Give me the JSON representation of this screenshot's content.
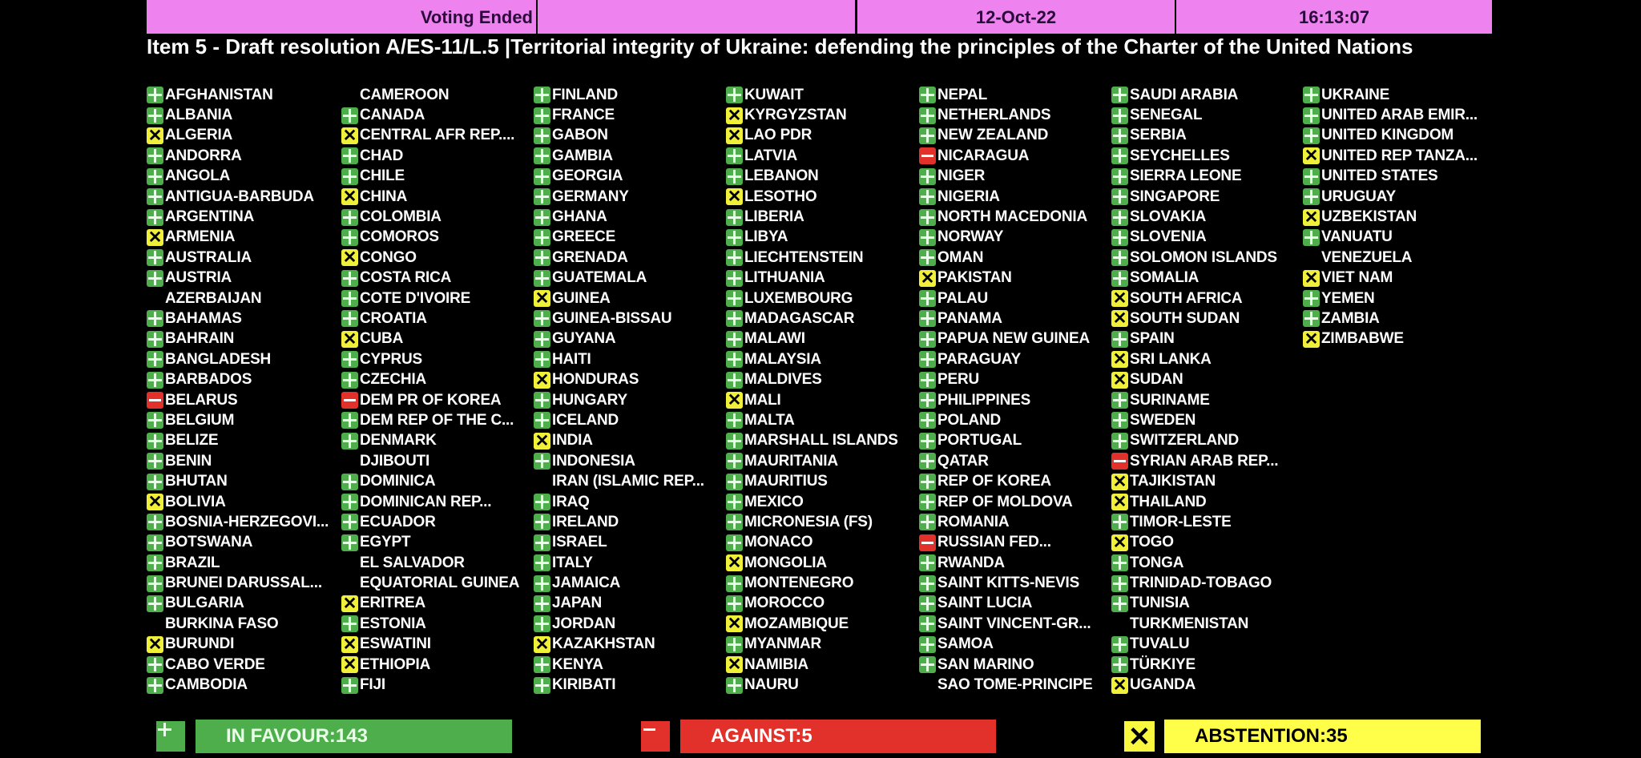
{
  "header": {
    "status": "Voting Ended",
    "segment2": "",
    "date": "12-Oct-22",
    "time": "16:13:07"
  },
  "title": "Item 5 - Draft resolution A/ES-11/L.5 |Territorial integrity of Ukraine: defending the principles of the Charter of the United Nations",
  "colors": {
    "yes": "#4fae4c",
    "no": "#e2302a",
    "abstain": "#f0f03a",
    "header": "#ee82ee"
  },
  "icons": {
    "yes": "plus-icon",
    "no": "minus-icon",
    "abstain": "x-icon"
  },
  "columns": [
    [
      {
        "name": "AFGHANISTAN",
        "vote": "yes"
      },
      {
        "name": "ALBANIA",
        "vote": "yes"
      },
      {
        "name": "ALGERIA",
        "vote": "abstain"
      },
      {
        "name": "ANDORRA",
        "vote": "yes"
      },
      {
        "name": "ANGOLA",
        "vote": "yes"
      },
      {
        "name": "ANTIGUA-BARBUDA",
        "vote": "yes"
      },
      {
        "name": "ARGENTINA",
        "vote": "yes"
      },
      {
        "name": "ARMENIA",
        "vote": "abstain"
      },
      {
        "name": "AUSTRALIA",
        "vote": "yes"
      },
      {
        "name": "AUSTRIA",
        "vote": "yes"
      },
      {
        "name": "AZERBAIJAN",
        "vote": ""
      },
      {
        "name": "BAHAMAS",
        "vote": "yes"
      },
      {
        "name": "BAHRAIN",
        "vote": "yes"
      },
      {
        "name": "BANGLADESH",
        "vote": "yes"
      },
      {
        "name": "BARBADOS",
        "vote": "yes"
      },
      {
        "name": "BELARUS",
        "vote": "no"
      },
      {
        "name": "BELGIUM",
        "vote": "yes"
      },
      {
        "name": "BELIZE",
        "vote": "yes"
      },
      {
        "name": "BENIN",
        "vote": "yes"
      },
      {
        "name": "BHUTAN",
        "vote": "yes"
      },
      {
        "name": "BOLIVIA",
        "vote": "abstain"
      },
      {
        "name": "BOSNIA-HERZEGOVI...",
        "vote": "yes"
      },
      {
        "name": "BOTSWANA",
        "vote": "yes"
      },
      {
        "name": "BRAZIL",
        "vote": "yes"
      },
      {
        "name": "BRUNEI DARUSSAL...",
        "vote": "yes"
      },
      {
        "name": "BULGARIA",
        "vote": "yes"
      },
      {
        "name": "BURKINA FASO",
        "vote": ""
      },
      {
        "name": "BURUNDI",
        "vote": "abstain"
      },
      {
        "name": "CABO VERDE",
        "vote": "yes"
      },
      {
        "name": "CAMBODIA",
        "vote": "yes"
      }
    ],
    [
      {
        "name": "CAMEROON",
        "vote": ""
      },
      {
        "name": "CANADA",
        "vote": "yes"
      },
      {
        "name": "CENTRAL AFR REP....",
        "vote": "abstain"
      },
      {
        "name": "CHAD",
        "vote": "yes"
      },
      {
        "name": "CHILE",
        "vote": "yes"
      },
      {
        "name": "CHINA",
        "vote": "abstain"
      },
      {
        "name": "COLOMBIA",
        "vote": "yes"
      },
      {
        "name": "COMOROS",
        "vote": "yes"
      },
      {
        "name": "CONGO",
        "vote": "abstain"
      },
      {
        "name": "COSTA RICA",
        "vote": "yes"
      },
      {
        "name": "COTE D'IVOIRE",
        "vote": "yes"
      },
      {
        "name": "CROATIA",
        "vote": "yes"
      },
      {
        "name": "CUBA",
        "vote": "abstain"
      },
      {
        "name": "CYPRUS",
        "vote": "yes"
      },
      {
        "name": "CZECHIA",
        "vote": "yes"
      },
      {
        "name": "DEM PR OF KOREA",
        "vote": "no"
      },
      {
        "name": "DEM REP OF THE C...",
        "vote": "yes"
      },
      {
        "name": "DENMARK",
        "vote": "yes"
      },
      {
        "name": "DJIBOUTI",
        "vote": ""
      },
      {
        "name": "DOMINICA",
        "vote": "yes"
      },
      {
        "name": "DOMINICAN REP...",
        "vote": "yes"
      },
      {
        "name": "ECUADOR",
        "vote": "yes"
      },
      {
        "name": "EGYPT",
        "vote": "yes"
      },
      {
        "name": "EL SALVADOR",
        "vote": ""
      },
      {
        "name": "EQUATORIAL GUINEA",
        "vote": ""
      },
      {
        "name": "ERITREA",
        "vote": "abstain"
      },
      {
        "name": "ESTONIA",
        "vote": "yes"
      },
      {
        "name": "ESWATINI",
        "vote": "abstain"
      },
      {
        "name": "ETHIOPIA",
        "vote": "abstain"
      },
      {
        "name": "FIJI",
        "vote": "yes"
      }
    ],
    [
      {
        "name": "FINLAND",
        "vote": "yes"
      },
      {
        "name": "FRANCE",
        "vote": "yes"
      },
      {
        "name": "GABON",
        "vote": "yes"
      },
      {
        "name": "GAMBIA",
        "vote": "yes"
      },
      {
        "name": "GEORGIA",
        "vote": "yes"
      },
      {
        "name": "GERMANY",
        "vote": "yes"
      },
      {
        "name": "GHANA",
        "vote": "yes"
      },
      {
        "name": "GREECE",
        "vote": "yes"
      },
      {
        "name": "GRENADA",
        "vote": "yes"
      },
      {
        "name": "GUATEMALA",
        "vote": "yes"
      },
      {
        "name": "GUINEA",
        "vote": "abstain"
      },
      {
        "name": "GUINEA-BISSAU",
        "vote": "yes"
      },
      {
        "name": "GUYANA",
        "vote": "yes"
      },
      {
        "name": "HAITI",
        "vote": "yes"
      },
      {
        "name": "HONDURAS",
        "vote": "abstain"
      },
      {
        "name": "HUNGARY",
        "vote": "yes"
      },
      {
        "name": "ICELAND",
        "vote": "yes"
      },
      {
        "name": "INDIA",
        "vote": "abstain"
      },
      {
        "name": "INDONESIA",
        "vote": "yes"
      },
      {
        "name": "IRAN (ISLAMIC REP...",
        "vote": ""
      },
      {
        "name": "IRAQ",
        "vote": "yes"
      },
      {
        "name": "IRELAND",
        "vote": "yes"
      },
      {
        "name": "ISRAEL",
        "vote": "yes"
      },
      {
        "name": "ITALY",
        "vote": "yes"
      },
      {
        "name": "JAMAICA",
        "vote": "yes"
      },
      {
        "name": "JAPAN",
        "vote": "yes"
      },
      {
        "name": "JORDAN",
        "vote": "yes"
      },
      {
        "name": "KAZAKHSTAN",
        "vote": "abstain"
      },
      {
        "name": "KENYA",
        "vote": "yes"
      },
      {
        "name": "KIRIBATI",
        "vote": "yes"
      }
    ],
    [
      {
        "name": "KUWAIT",
        "vote": "yes"
      },
      {
        "name": "KYRGYZSTAN",
        "vote": "abstain"
      },
      {
        "name": "LAO PDR",
        "vote": "abstain"
      },
      {
        "name": "LATVIA",
        "vote": "yes"
      },
      {
        "name": "LEBANON",
        "vote": "yes"
      },
      {
        "name": "LESOTHO",
        "vote": "abstain"
      },
      {
        "name": "LIBERIA",
        "vote": "yes"
      },
      {
        "name": "LIBYA",
        "vote": "yes"
      },
      {
        "name": "LIECHTENSTEIN",
        "vote": "yes"
      },
      {
        "name": "LITHUANIA",
        "vote": "yes"
      },
      {
        "name": "LUXEMBOURG",
        "vote": "yes"
      },
      {
        "name": "MADAGASCAR",
        "vote": "yes"
      },
      {
        "name": "MALAWI",
        "vote": "yes"
      },
      {
        "name": "MALAYSIA",
        "vote": "yes"
      },
      {
        "name": "MALDIVES",
        "vote": "yes"
      },
      {
        "name": "MALI",
        "vote": "abstain"
      },
      {
        "name": "MALTA",
        "vote": "yes"
      },
      {
        "name": "MARSHALL ISLANDS",
        "vote": "yes"
      },
      {
        "name": "MAURITANIA",
        "vote": "yes"
      },
      {
        "name": "MAURITIUS",
        "vote": "yes"
      },
      {
        "name": "MEXICO",
        "vote": "yes"
      },
      {
        "name": "MICRONESIA (FS)",
        "vote": "yes"
      },
      {
        "name": "MONACO",
        "vote": "yes"
      },
      {
        "name": "MONGOLIA",
        "vote": "abstain"
      },
      {
        "name": "MONTENEGRO",
        "vote": "yes"
      },
      {
        "name": "MOROCCO",
        "vote": "yes"
      },
      {
        "name": "MOZAMBIQUE",
        "vote": "abstain"
      },
      {
        "name": "MYANMAR",
        "vote": "yes"
      },
      {
        "name": "NAMIBIA",
        "vote": "abstain"
      },
      {
        "name": "NAURU",
        "vote": "yes"
      }
    ],
    [
      {
        "name": "NEPAL",
        "vote": "yes"
      },
      {
        "name": "NETHERLANDS",
        "vote": "yes"
      },
      {
        "name": "NEW ZEALAND",
        "vote": "yes"
      },
      {
        "name": "NICARAGUA",
        "vote": "no"
      },
      {
        "name": "NIGER",
        "vote": "yes"
      },
      {
        "name": "NIGERIA",
        "vote": "yes"
      },
      {
        "name": "NORTH MACEDONIA",
        "vote": "yes"
      },
      {
        "name": "NORWAY",
        "vote": "yes"
      },
      {
        "name": "OMAN",
        "vote": "yes"
      },
      {
        "name": "PAKISTAN",
        "vote": "abstain"
      },
      {
        "name": "PALAU",
        "vote": "yes"
      },
      {
        "name": "PANAMA",
        "vote": "yes"
      },
      {
        "name": "PAPUA NEW GUINEA",
        "vote": "yes"
      },
      {
        "name": "PARAGUAY",
        "vote": "yes"
      },
      {
        "name": "PERU",
        "vote": "yes"
      },
      {
        "name": "PHILIPPINES",
        "vote": "yes"
      },
      {
        "name": "POLAND",
        "vote": "yes"
      },
      {
        "name": "PORTUGAL",
        "vote": "yes"
      },
      {
        "name": "QATAR",
        "vote": "yes"
      },
      {
        "name": "REP OF KOREA",
        "vote": "yes"
      },
      {
        "name": "REP OF MOLDOVA",
        "vote": "yes"
      },
      {
        "name": "ROMANIA",
        "vote": "yes"
      },
      {
        "name": "RUSSIAN FED...",
        "vote": "no"
      },
      {
        "name": "RWANDA",
        "vote": "yes"
      },
      {
        "name": "SAINT KITTS-NEVIS",
        "vote": "yes"
      },
      {
        "name": "SAINT LUCIA",
        "vote": "yes"
      },
      {
        "name": "SAINT VINCENT-GR...",
        "vote": "yes"
      },
      {
        "name": "SAMOA",
        "vote": "yes"
      },
      {
        "name": "SAN MARINO",
        "vote": "yes"
      },
      {
        "name": "SAO TOME-PRINCIPE",
        "vote": ""
      }
    ],
    [
      {
        "name": "SAUDI ARABIA",
        "vote": "yes"
      },
      {
        "name": "SENEGAL",
        "vote": "yes"
      },
      {
        "name": "SERBIA",
        "vote": "yes"
      },
      {
        "name": "SEYCHELLES",
        "vote": "yes"
      },
      {
        "name": "SIERRA LEONE",
        "vote": "yes"
      },
      {
        "name": "SINGAPORE",
        "vote": "yes"
      },
      {
        "name": "SLOVAKIA",
        "vote": "yes"
      },
      {
        "name": "SLOVENIA",
        "vote": "yes"
      },
      {
        "name": "SOLOMON ISLANDS",
        "vote": "yes"
      },
      {
        "name": "SOMALIA",
        "vote": "yes"
      },
      {
        "name": "SOUTH AFRICA",
        "vote": "abstain"
      },
      {
        "name": "SOUTH SUDAN",
        "vote": "abstain"
      },
      {
        "name": "SPAIN",
        "vote": "yes"
      },
      {
        "name": "SRI LANKA",
        "vote": "abstain"
      },
      {
        "name": "SUDAN",
        "vote": "abstain"
      },
      {
        "name": "SURINAME",
        "vote": "yes"
      },
      {
        "name": "SWEDEN",
        "vote": "yes"
      },
      {
        "name": "SWITZERLAND",
        "vote": "yes"
      },
      {
        "name": "SYRIAN ARAB REP...",
        "vote": "no"
      },
      {
        "name": "TAJIKISTAN",
        "vote": "abstain"
      },
      {
        "name": "THAILAND",
        "vote": "abstain"
      },
      {
        "name": "TIMOR-LESTE",
        "vote": "yes"
      },
      {
        "name": "TOGO",
        "vote": "abstain"
      },
      {
        "name": "TONGA",
        "vote": "yes"
      },
      {
        "name": "TRINIDAD-TOBAGO",
        "vote": "yes"
      },
      {
        "name": "TUNISIA",
        "vote": "yes"
      },
      {
        "name": "TURKMENISTAN",
        "vote": ""
      },
      {
        "name": "TUVALU",
        "vote": "yes"
      },
      {
        "name": "TÜRKIYE",
        "vote": "yes"
      },
      {
        "name": "UGANDA",
        "vote": "abstain"
      }
    ],
    [
      {
        "name": "UKRAINE",
        "vote": "yes"
      },
      {
        "name": "UNITED ARAB EMIR...",
        "vote": "yes"
      },
      {
        "name": "UNITED KINGDOM",
        "vote": "yes"
      },
      {
        "name": "UNITED REP TANZA...",
        "vote": "abstain"
      },
      {
        "name": "UNITED STATES",
        "vote": "yes"
      },
      {
        "name": "URUGUAY",
        "vote": "yes"
      },
      {
        "name": "UZBEKISTAN",
        "vote": "abstain"
      },
      {
        "name": "VANUATU",
        "vote": "yes"
      },
      {
        "name": "VENEZUELA",
        "vote": ""
      },
      {
        "name": "VIET NAM",
        "vote": "abstain"
      },
      {
        "name": "YEMEN",
        "vote": "yes"
      },
      {
        "name": "ZAMBIA",
        "vote": "yes"
      },
      {
        "name": "ZIMBABWE",
        "vote": "abstain"
      }
    ]
  ],
  "totals": {
    "in_favour": "IN FAVOUR:143",
    "against": "AGAINST:5",
    "abstention": "ABSTENTION:35"
  }
}
